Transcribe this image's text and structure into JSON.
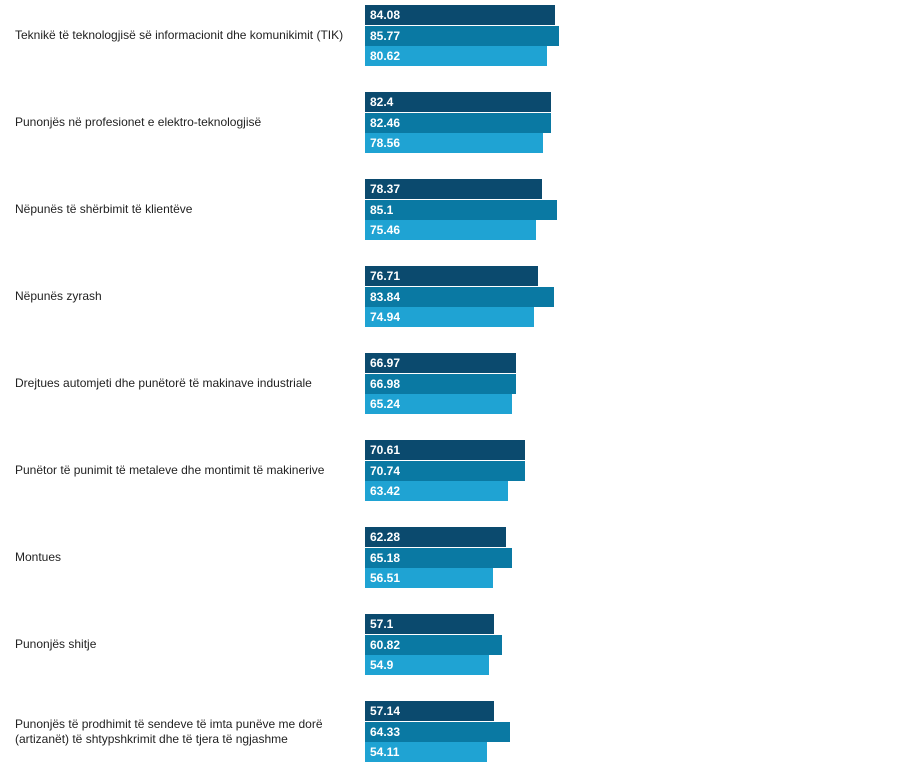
{
  "chart_data": {
    "type": "grouped-hbar",
    "categories": [
      "Teknikë të teknologjisë së informacionit dhe komunikimit (TIK)",
      "Punonjës në profesionet e elektro-teknologjisë",
      "Nëpunës të shërbimit të klientëve",
      "Nëpunës zyrash",
      "Drejtues automjeti dhe punëtorë të makinave industriale",
      "Punëtor të punimit të metaleve dhe montimit të makinerive",
      "Montues",
      "Punonjës shitje",
      "Punonjës të prodhimit të sendeve të imta punëve me dorë (artizanët) të shtypshkrimit dhe të tjera të ngjashme"
    ],
    "series": [
      {
        "color": "#0b4a6e",
        "values": [
          84.08,
          82.4,
          78.37,
          76.71,
          66.97,
          70.61,
          62.28,
          57.1,
          57.14
        ]
      },
      {
        "color": "#0a79a3",
        "values": [
          85.77,
          82.46,
          85.1,
          83.84,
          66.98,
          70.74,
          65.18,
          60.82,
          64.33
        ]
      },
      {
        "color": "#1fa3d3",
        "values": [
          80.62,
          78.56,
          75.46,
          74.94,
          65.24,
          63.42,
          56.51,
          54.9,
          54.11
        ]
      }
    ]
  }
}
